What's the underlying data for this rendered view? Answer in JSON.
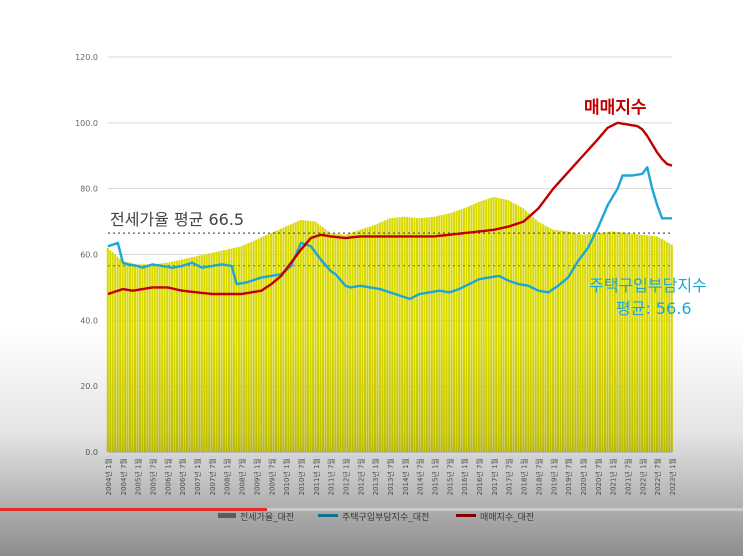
{
  "chart_data": {
    "type": "bar+line",
    "yticks": [
      "0.0",
      "20.0",
      "40.0",
      "60.0",
      "80.0",
      "100.0",
      "120.0"
    ],
    "ylim": [
      0,
      120
    ],
    "xticks": [
      "2004년 1월",
      "2004년 7월",
      "2005년 1월",
      "2005년 7월",
      "2006년 1월",
      "2006년 7월",
      "2007년 1월",
      "2007년 7월",
      "2008년 1월",
      "2008년 7월",
      "2009년 1월",
      "2009년 7월",
      "2010년 1월",
      "2010년 7월",
      "2011년 1월",
      "2011년 7월",
      "2012년 1월",
      "2012년 7월",
      "2013년 1월",
      "2013년 7월",
      "2014년 1월",
      "2014년 7월",
      "2015년 1월",
      "2015년 7월",
      "2016년 1월",
      "2016년 7월",
      "2017년 1월",
      "2017년 7월",
      "2018년 1월",
      "2018년 7월",
      "2019년 1월",
      "2019년 7월",
      "2020년 1월",
      "2020년 7월",
      "2021년 1월",
      "2021년 7월",
      "2022년 1월",
      "2022년 7월",
      "2023년 1월"
    ],
    "x_anchor_labels_index": [
      0,
      6,
      12,
      18,
      24,
      30,
      36,
      42,
      48,
      54,
      60,
      66,
      72,
      78,
      84,
      90,
      96,
      102,
      108,
      114,
      120,
      126,
      132,
      138,
      144,
      150,
      156,
      162,
      168,
      174,
      180,
      186,
      192,
      198,
      204,
      210,
      216,
      222,
      228
    ],
    "series": [
      {
        "name": "전세가율_대전",
        "kind": "bar",
        "color": "#d9d900",
        "anchors_x": [
          0,
          6,
          12,
          18,
          24,
          30,
          36,
          42,
          48,
          54,
          60,
          66,
          72,
          78,
          84,
          90,
          96,
          102,
          108,
          114,
          120,
          126,
          132,
          138,
          144,
          150,
          156,
          162,
          168,
          174,
          180,
          186,
          192,
          198,
          204,
          210,
          216,
          222,
          228
        ],
        "anchors_y": [
          62.0,
          58.0,
          57.0,
          57.0,
          57.5,
          58.5,
          59.5,
          60.5,
          61.5,
          62.5,
          64.5,
          66.5,
          68.5,
          70.5,
          70.0,
          66.5,
          66.0,
          67.5,
          69.0,
          71.0,
          71.5,
          71.0,
          71.5,
          72.5,
          74.0,
          76.0,
          77.5,
          76.5,
          74.0,
          70.0,
          67.5,
          67.0,
          66.0,
          66.5,
          67.0,
          66.5,
          66.0,
          65.5,
          63.0
        ]
      },
      {
        "name": "주택구입부담지수_대전",
        "kind": "line",
        "color": "#1ea6d6",
        "anchors_x": [
          0,
          4,
          6,
          8,
          12,
          14,
          18,
          22,
          26,
          30,
          34,
          38,
          42,
          46,
          50,
          52,
          56,
          60,
          62,
          66,
          70,
          74,
          78,
          82,
          86,
          90,
          92,
          96,
          98,
          102,
          106,
          110,
          114,
          118,
          122,
          126,
          130,
          134,
          138,
          142,
          146,
          150,
          154,
          158,
          162,
          166,
          170,
          174,
          178,
          182,
          186,
          190,
          194,
          198,
          202,
          206,
          208,
          212,
          216,
          218,
          220,
          222,
          224,
          226,
          228
        ],
        "anchors_y": [
          62.5,
          63.5,
          57.5,
          57.0,
          56.5,
          56.0,
          57.0,
          56.5,
          56.0,
          56.5,
          57.5,
          56.0,
          56.5,
          57.0,
          56.5,
          51.0,
          51.5,
          52.5,
          53.0,
          53.5,
          54.0,
          56.5,
          63.5,
          62.5,
          58.5,
          55.0,
          54.0,
          50.5,
          50.0,
          50.5,
          50.0,
          49.5,
          48.5,
          47.5,
          46.5,
          48.0,
          48.5,
          49.0,
          48.5,
          49.5,
          51.0,
          52.5,
          53.0,
          53.5,
          52.0,
          51.0,
          50.5,
          49.0,
          48.5,
          50.5,
          53.0,
          58.0,
          62.0,
          68.0,
          75.0,
          80.0,
          84.0,
          84.0,
          84.5,
          86.5,
          80.0,
          75.0,
          71.0,
          71.0,
          71.0
        ]
      },
      {
        "name": "매매지수_대전",
        "kind": "line",
        "color": "#c00000",
        "anchors_x": [
          0,
          6,
          10,
          14,
          18,
          24,
          30,
          36,
          42,
          48,
          54,
          58,
          62,
          66,
          70,
          74,
          78,
          82,
          86,
          90,
          96,
          102,
          108,
          114,
          120,
          126,
          132,
          138,
          144,
          150,
          156,
          162,
          168,
          174,
          180,
          186,
          192,
          198,
          202,
          206,
          210,
          214,
          216,
          218,
          220,
          222,
          224,
          226,
          228
        ],
        "anchors_y": [
          48.0,
          49.5,
          49.0,
          49.5,
          50.0,
          50.0,
          49.0,
          48.5,
          48.0,
          48.0,
          48.0,
          48.5,
          49.0,
          51.0,
          53.5,
          57.5,
          61.5,
          65.0,
          66.0,
          65.5,
          65.0,
          65.5,
          65.5,
          65.5,
          65.5,
          65.5,
          65.5,
          66.0,
          66.5,
          67.0,
          67.5,
          68.5,
          70.0,
          74.0,
          80.0,
          85.0,
          90.0,
          95.0,
          98.5,
          100.0,
          99.5,
          99.0,
          98.0,
          96.0,
          93.5,
          91.0,
          89.0,
          87.5,
          87.0
        ]
      }
    ],
    "annotations": {
      "jeonse_avg_label": "전세가율 평균 66.5",
      "jeonse_avg_value": 66.5,
      "burden_avg_label_line1": "주택구입부담지수",
      "burden_avg_label_line2": "평균: 56.6",
      "burden_avg_value": 56.6,
      "price_label": "매매지수"
    },
    "legend": [
      "전세가율_대전",
      "주택구입부담지수_대전",
      "매매지수_대전"
    ],
    "legend_position": "bottom",
    "grid": true,
    "annotation_colors": {
      "jeonse": "#444444",
      "burden": "#1ea6d6",
      "price": "#c00000"
    }
  },
  "video": {
    "progress": 0.36
  }
}
